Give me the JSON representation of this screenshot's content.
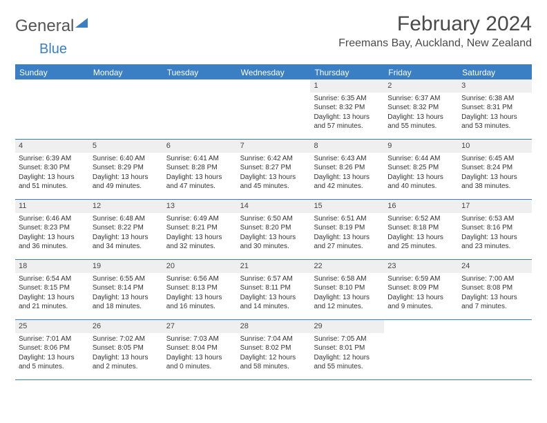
{
  "brand": {
    "text1": "General",
    "text2": "Blue"
  },
  "title": "February 2024",
  "location": "Freemans Bay, Auckland, New Zealand",
  "colors": {
    "accent": "#3a7fc4",
    "daynum_bg": "#efefef",
    "text": "#333333",
    "bg": "#ffffff"
  },
  "weekdays": [
    "Sunday",
    "Monday",
    "Tuesday",
    "Wednesday",
    "Thursday",
    "Friday",
    "Saturday"
  ],
  "weeks": [
    [
      {
        "n": "",
        "sr": "",
        "ss": "",
        "dl": ""
      },
      {
        "n": "",
        "sr": "",
        "ss": "",
        "dl": ""
      },
      {
        "n": "",
        "sr": "",
        "ss": "",
        "dl": ""
      },
      {
        "n": "",
        "sr": "",
        "ss": "",
        "dl": ""
      },
      {
        "n": "1",
        "sr": "Sunrise: 6:35 AM",
        "ss": "Sunset: 8:32 PM",
        "dl": "Daylight: 13 hours and 57 minutes."
      },
      {
        "n": "2",
        "sr": "Sunrise: 6:37 AM",
        "ss": "Sunset: 8:32 PM",
        "dl": "Daylight: 13 hours and 55 minutes."
      },
      {
        "n": "3",
        "sr": "Sunrise: 6:38 AM",
        "ss": "Sunset: 8:31 PM",
        "dl": "Daylight: 13 hours and 53 minutes."
      }
    ],
    [
      {
        "n": "4",
        "sr": "Sunrise: 6:39 AM",
        "ss": "Sunset: 8:30 PM",
        "dl": "Daylight: 13 hours and 51 minutes."
      },
      {
        "n": "5",
        "sr": "Sunrise: 6:40 AM",
        "ss": "Sunset: 8:29 PM",
        "dl": "Daylight: 13 hours and 49 minutes."
      },
      {
        "n": "6",
        "sr": "Sunrise: 6:41 AM",
        "ss": "Sunset: 8:28 PM",
        "dl": "Daylight: 13 hours and 47 minutes."
      },
      {
        "n": "7",
        "sr": "Sunrise: 6:42 AM",
        "ss": "Sunset: 8:27 PM",
        "dl": "Daylight: 13 hours and 45 minutes."
      },
      {
        "n": "8",
        "sr": "Sunrise: 6:43 AM",
        "ss": "Sunset: 8:26 PM",
        "dl": "Daylight: 13 hours and 42 minutes."
      },
      {
        "n": "9",
        "sr": "Sunrise: 6:44 AM",
        "ss": "Sunset: 8:25 PM",
        "dl": "Daylight: 13 hours and 40 minutes."
      },
      {
        "n": "10",
        "sr": "Sunrise: 6:45 AM",
        "ss": "Sunset: 8:24 PM",
        "dl": "Daylight: 13 hours and 38 minutes."
      }
    ],
    [
      {
        "n": "11",
        "sr": "Sunrise: 6:46 AM",
        "ss": "Sunset: 8:23 PM",
        "dl": "Daylight: 13 hours and 36 minutes."
      },
      {
        "n": "12",
        "sr": "Sunrise: 6:48 AM",
        "ss": "Sunset: 8:22 PM",
        "dl": "Daylight: 13 hours and 34 minutes."
      },
      {
        "n": "13",
        "sr": "Sunrise: 6:49 AM",
        "ss": "Sunset: 8:21 PM",
        "dl": "Daylight: 13 hours and 32 minutes."
      },
      {
        "n": "14",
        "sr": "Sunrise: 6:50 AM",
        "ss": "Sunset: 8:20 PM",
        "dl": "Daylight: 13 hours and 30 minutes."
      },
      {
        "n": "15",
        "sr": "Sunrise: 6:51 AM",
        "ss": "Sunset: 8:19 PM",
        "dl": "Daylight: 13 hours and 27 minutes."
      },
      {
        "n": "16",
        "sr": "Sunrise: 6:52 AM",
        "ss": "Sunset: 8:18 PM",
        "dl": "Daylight: 13 hours and 25 minutes."
      },
      {
        "n": "17",
        "sr": "Sunrise: 6:53 AM",
        "ss": "Sunset: 8:16 PM",
        "dl": "Daylight: 13 hours and 23 minutes."
      }
    ],
    [
      {
        "n": "18",
        "sr": "Sunrise: 6:54 AM",
        "ss": "Sunset: 8:15 PM",
        "dl": "Daylight: 13 hours and 21 minutes."
      },
      {
        "n": "19",
        "sr": "Sunrise: 6:55 AM",
        "ss": "Sunset: 8:14 PM",
        "dl": "Daylight: 13 hours and 18 minutes."
      },
      {
        "n": "20",
        "sr": "Sunrise: 6:56 AM",
        "ss": "Sunset: 8:13 PM",
        "dl": "Daylight: 13 hours and 16 minutes."
      },
      {
        "n": "21",
        "sr": "Sunrise: 6:57 AM",
        "ss": "Sunset: 8:11 PM",
        "dl": "Daylight: 13 hours and 14 minutes."
      },
      {
        "n": "22",
        "sr": "Sunrise: 6:58 AM",
        "ss": "Sunset: 8:10 PM",
        "dl": "Daylight: 13 hours and 12 minutes."
      },
      {
        "n": "23",
        "sr": "Sunrise: 6:59 AM",
        "ss": "Sunset: 8:09 PM",
        "dl": "Daylight: 13 hours and 9 minutes."
      },
      {
        "n": "24",
        "sr": "Sunrise: 7:00 AM",
        "ss": "Sunset: 8:08 PM",
        "dl": "Daylight: 13 hours and 7 minutes."
      }
    ],
    [
      {
        "n": "25",
        "sr": "Sunrise: 7:01 AM",
        "ss": "Sunset: 8:06 PM",
        "dl": "Daylight: 13 hours and 5 minutes."
      },
      {
        "n": "26",
        "sr": "Sunrise: 7:02 AM",
        "ss": "Sunset: 8:05 PM",
        "dl": "Daylight: 13 hours and 2 minutes."
      },
      {
        "n": "27",
        "sr": "Sunrise: 7:03 AM",
        "ss": "Sunset: 8:04 PM",
        "dl": "Daylight: 13 hours and 0 minutes."
      },
      {
        "n": "28",
        "sr": "Sunrise: 7:04 AM",
        "ss": "Sunset: 8:02 PM",
        "dl": "Daylight: 12 hours and 58 minutes."
      },
      {
        "n": "29",
        "sr": "Sunrise: 7:05 AM",
        "ss": "Sunset: 8:01 PM",
        "dl": "Daylight: 12 hours and 55 minutes."
      },
      {
        "n": "",
        "sr": "",
        "ss": "",
        "dl": ""
      },
      {
        "n": "",
        "sr": "",
        "ss": "",
        "dl": ""
      }
    ]
  ]
}
